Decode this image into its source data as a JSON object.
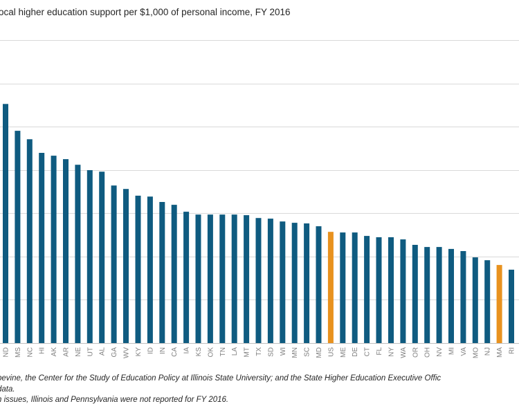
{
  "chart_data": {
    "type": "bar",
    "title": "ocal higher education support per $1,000 of personal income, FY 2016",
    "xlabel": "",
    "ylabel": "",
    "ylim": [
      0,
      14
    ],
    "y_gridline_step": 2,
    "y_tick_labels_visible": false,
    "grid": true,
    "legend": "none",
    "colors": {
      "default": "#0f5b80",
      "highlight": "#e8921f",
      "gridline": "#d9d9d9",
      "tick_text": "#7f7f7f"
    },
    "categories": [
      "ND",
      "MS",
      "NC",
      "HI",
      "AK",
      "AR",
      "NE",
      "UT",
      "AL",
      "GA",
      "WV",
      "KY",
      "ID",
      "IN",
      "CA",
      "IA",
      "KS",
      "OK",
      "TN",
      "LA",
      "MT",
      "TX",
      "SD",
      "WI",
      "MN",
      "SC",
      "MD",
      "US",
      "ME",
      "DE",
      "CT",
      "FL",
      "NY",
      "WA",
      "OR",
      "OH",
      "NV",
      "MI",
      "VA",
      "MO",
      "NJ",
      "MA",
      "RI"
    ],
    "values": [
      11.05,
      9.81,
      9.42,
      8.79,
      8.66,
      8.5,
      8.24,
      7.99,
      7.92,
      7.28,
      7.12,
      6.81,
      6.77,
      6.52,
      6.39,
      6.07,
      5.94,
      5.94,
      5.94,
      5.94,
      5.91,
      5.78,
      5.75,
      5.62,
      5.56,
      5.53,
      5.4,
      5.14,
      5.11,
      5.11,
      4.95,
      4.89,
      4.89,
      4.79,
      4.54,
      4.44,
      4.44,
      4.35,
      4.25,
      3.96,
      3.83,
      3.61,
      3.39
    ],
    "highlighted": [
      "US",
      "MA"
    ]
  },
  "footnotes": {
    "line1": "pevine, the Center for the Study of Education Policy at Illinois State University; and the State Higher Education Executive Offic",
    "line2": "  data.",
    "line3": "n issues, Illinois and Pennsylvania were not reported for FY 2016."
  }
}
